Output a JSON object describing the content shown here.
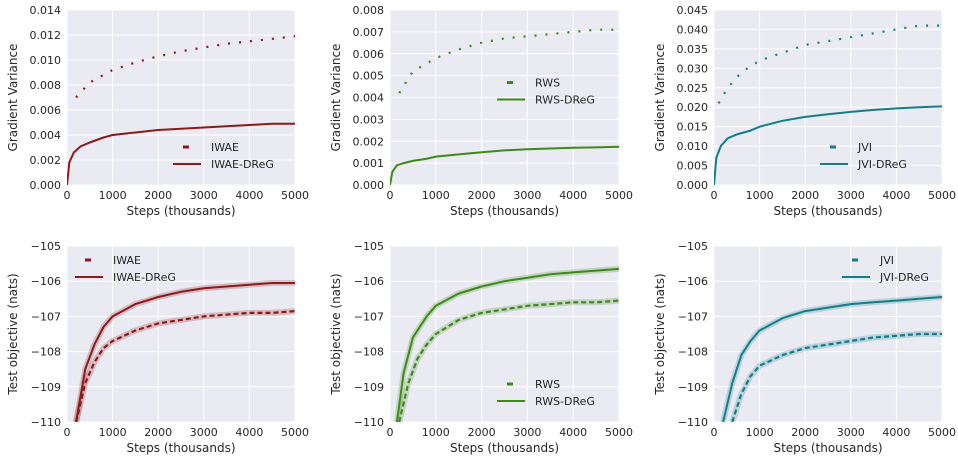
{
  "colors": {
    "IWAE": "#8b1a1a",
    "RWS": "#3d8a16",
    "JVI": "#137e88",
    "background": "#eaeaf2",
    "grid": "#ffffff",
    "text": "#262626"
  },
  "chart_data": [
    {
      "type": "line",
      "panel": "top-left",
      "xlabel": "Steps (thousands)",
      "ylabel": "Gradient Variance",
      "xlim": [
        0,
        5000
      ],
      "ylim": [
        0,
        0.014
      ],
      "xticks": [
        "0",
        "1000",
        "2000",
        "3000",
        "4000",
        "5000"
      ],
      "yticks": [
        "0.000",
        "0.002",
        "0.004",
        "0.006",
        "0.008",
        "0.010",
        "0.012",
        "0.014"
      ],
      "grid": true,
      "legend": "bottom-right",
      "color": "IWAE",
      "series": [
        {
          "name": "IWAE",
          "style": "dashed",
          "x": [
            200,
            500,
            1000,
            1500,
            2000,
            2500,
            3000,
            3500,
            4000,
            4500,
            5000
          ],
          "y": [
            0.007,
            0.0082,
            0.0092,
            0.0098,
            0.0103,
            0.0107,
            0.011,
            0.0113,
            0.0115,
            0.0117,
            0.0119
          ]
        },
        {
          "name": "IWAE-DReG",
          "style": "solid",
          "x": [
            0,
            50,
            150,
            300,
            500,
            800,
            1000,
            1500,
            2000,
            2500,
            3000,
            3500,
            4000,
            4500,
            5000
          ],
          "y": [
            0.0,
            0.0018,
            0.0026,
            0.0031,
            0.0034,
            0.0038,
            0.004,
            0.0042,
            0.0044,
            0.0045,
            0.0046,
            0.0047,
            0.0048,
            0.0049,
            0.0049
          ]
        }
      ]
    },
    {
      "type": "line",
      "panel": "top-middle",
      "xlabel": "Steps (thousands)",
      "ylabel": "Gradient Variance",
      "xlim": [
        0,
        5000
      ],
      "ylim": [
        0,
        0.008
      ],
      "xticks": [
        "0",
        "1000",
        "2000",
        "3000",
        "4000",
        "5000"
      ],
      "yticks": [
        "0.000",
        "0.001",
        "0.002",
        "0.003",
        "0.004",
        "0.005",
        "0.006",
        "0.007",
        "0.008"
      ],
      "grid": true,
      "legend": "center-right",
      "color": "RWS",
      "series": [
        {
          "name": "RWS",
          "style": "dashed",
          "x": [
            200,
            500,
            1000,
            1500,
            2000,
            2500,
            3000,
            3500,
            4000,
            4500,
            5000
          ],
          "y": [
            0.0042,
            0.0052,
            0.0058,
            0.0062,
            0.0065,
            0.0067,
            0.0068,
            0.0069,
            0.007,
            0.0071,
            0.0071
          ]
        },
        {
          "name": "RWS-DReG",
          "style": "solid",
          "x": [
            0,
            50,
            150,
            300,
            500,
            800,
            1000,
            1500,
            2000,
            2500,
            3000,
            3500,
            4000,
            4500,
            5000
          ],
          "y": [
            0.0,
            0.0006,
            0.0009,
            0.001,
            0.0011,
            0.0012,
            0.0013,
            0.0014,
            0.0015,
            0.00158,
            0.00163,
            0.00167,
            0.0017,
            0.00172,
            0.00175
          ]
        }
      ]
    },
    {
      "type": "line",
      "panel": "top-right",
      "xlabel": "Steps (thousands)",
      "ylabel": "Gradient Variance",
      "xlim": [
        0,
        5000
      ],
      "ylim": [
        0,
        0.045
      ],
      "xticks": [
        "0",
        "1000",
        "2000",
        "3000",
        "4000",
        "5000"
      ],
      "yticks": [
        "0.000",
        "0.005",
        "0.010",
        "0.015",
        "0.020",
        "0.025",
        "0.030",
        "0.035",
        "0.040",
        "0.045"
      ],
      "grid": true,
      "legend": "bottom-right",
      "color": "JVI",
      "series": [
        {
          "name": "JVI",
          "style": "dashed",
          "x": [
            100,
            300,
            600,
            1000,
            1500,
            2000,
            2500,
            3000,
            3500,
            4000,
            4500,
            5000
          ],
          "y": [
            0.021,
            0.025,
            0.029,
            0.032,
            0.034,
            0.036,
            0.037,
            0.038,
            0.039,
            0.04,
            0.041,
            0.041
          ]
        },
        {
          "name": "JVI-DReG",
          "style": "solid",
          "x": [
            0,
            50,
            150,
            300,
            500,
            800,
            1000,
            1500,
            2000,
            2500,
            3000,
            3500,
            4000,
            4500,
            5000
          ],
          "y": [
            0.0,
            0.007,
            0.01,
            0.012,
            0.013,
            0.014,
            0.015,
            0.0165,
            0.0175,
            0.0182,
            0.0188,
            0.0193,
            0.0197,
            0.02,
            0.0202
          ]
        }
      ]
    },
    {
      "type": "line",
      "panel": "bottom-left",
      "xlabel": "Steps (thousands)",
      "ylabel": "Test objective (nats)",
      "xlim": [
        0,
        5000
      ],
      "ylim": [
        -110,
        -105
      ],
      "xticks": [
        "0",
        "1000",
        "2000",
        "3000",
        "4000",
        "5000"
      ],
      "yticks": [
        "−110",
        "−109",
        "−108",
        "−107",
        "−106",
        "−105"
      ],
      "grid": true,
      "legend": "top-left",
      "color": "IWAE",
      "series": [
        {
          "name": "IWAE",
          "style": "dashed",
          "x": [
            200,
            400,
            600,
            800,
            1000,
            1500,
            2000,
            2500,
            3000,
            3500,
            4000,
            4500,
            5000
          ],
          "y": [
            -110.0,
            -108.9,
            -108.3,
            -107.9,
            -107.7,
            -107.4,
            -107.2,
            -107.1,
            -107.0,
            -106.95,
            -106.9,
            -106.9,
            -106.85
          ]
        },
        {
          "name": "IWAE-DReG",
          "style": "solid",
          "x": [
            200,
            400,
            600,
            800,
            1000,
            1500,
            2000,
            2500,
            3000,
            3500,
            4000,
            4500,
            5000
          ],
          "y": [
            -110.0,
            -108.5,
            -107.8,
            -107.3,
            -107.0,
            -106.65,
            -106.45,
            -106.3,
            -106.2,
            -106.15,
            -106.1,
            -106.05,
            -106.05
          ]
        }
      ]
    },
    {
      "type": "line",
      "panel": "bottom-middle",
      "xlabel": "Steps (thousands)",
      "ylabel": "Test objective (nats)",
      "xlim": [
        0,
        5000
      ],
      "ylim": [
        -110,
        -105
      ],
      "xticks": [
        "0",
        "1000",
        "2000",
        "3000",
        "4000",
        "5000"
      ],
      "yticks": [
        "−110",
        "−109",
        "−108",
        "−107",
        "−106",
        "−105"
      ],
      "grid": true,
      "legend": "bottom-right",
      "color": "RWS",
      "series": [
        {
          "name": "RWS",
          "style": "dashed",
          "x": [
            200,
            400,
            600,
            800,
            1000,
            1500,
            2000,
            2500,
            3000,
            3500,
            4000,
            4500,
            5000
          ],
          "y": [
            -110.0,
            -108.9,
            -108.2,
            -107.8,
            -107.5,
            -107.1,
            -106.9,
            -106.8,
            -106.7,
            -106.65,
            -106.6,
            -106.6,
            -106.55
          ]
        },
        {
          "name": "RWS-DReG",
          "style": "solid",
          "x": [
            150,
            300,
            500,
            800,
            1000,
            1500,
            2000,
            2500,
            3000,
            3500,
            4000,
            4500,
            5000
          ],
          "y": [
            -110.0,
            -108.6,
            -107.6,
            -107.0,
            -106.7,
            -106.35,
            -106.15,
            -106.0,
            -105.9,
            -105.8,
            -105.75,
            -105.7,
            -105.65
          ]
        }
      ]
    },
    {
      "type": "line",
      "panel": "bottom-right",
      "xlabel": "Steps (thousands)",
      "ylabel": "Test objective (nats)",
      "xlim": [
        0,
        5000
      ],
      "ylim": [
        -110,
        -105
      ],
      "xticks": [
        "0",
        "1000",
        "2000",
        "3000",
        "4000",
        "5000"
      ],
      "yticks": [
        "−110",
        "−109",
        "−108",
        "−107",
        "−106",
        "−105"
      ],
      "grid": true,
      "legend": "top-right",
      "color": "JVI",
      "series": [
        {
          "name": "JVI",
          "style": "dashed",
          "x": [
            400,
            600,
            800,
            1000,
            1500,
            2000,
            2500,
            3000,
            3500,
            4000,
            4500,
            5000
          ],
          "y": [
            -110.0,
            -109.2,
            -108.7,
            -108.4,
            -108.1,
            -107.9,
            -107.8,
            -107.7,
            -107.6,
            -107.55,
            -107.5,
            -107.5
          ]
        },
        {
          "name": "JVI-DReG",
          "style": "solid",
          "x": [
            200,
            400,
            600,
            800,
            1000,
            1500,
            2000,
            2500,
            3000,
            3500,
            4000,
            4500,
            5000
          ],
          "y": [
            -110.0,
            -108.9,
            -108.1,
            -107.7,
            -107.4,
            -107.05,
            -106.85,
            -106.75,
            -106.65,
            -106.6,
            -106.55,
            -106.5,
            -106.45
          ]
        }
      ]
    }
  ]
}
